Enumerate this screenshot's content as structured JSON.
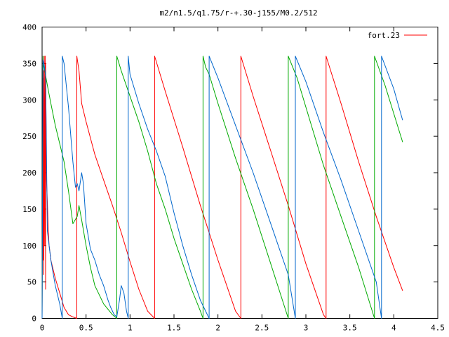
{
  "chart_data": {
    "type": "line",
    "title": "m2/n1.5/q1.75/r-+.30-j155/M0.2/512",
    "xlabel": "",
    "ylabel": "",
    "xlim": [
      0,
      4.5
    ],
    "ylim": [
      0,
      400
    ],
    "x_ticks": [
      "0",
      "0.5",
      "1",
      "1.5",
      "2",
      "2.5",
      "3",
      "3.5",
      "4",
      "4.5"
    ],
    "y_ticks": [
      "0",
      "50",
      "100",
      "150",
      "200",
      "250",
      "300",
      "350",
      "400"
    ],
    "grid": false,
    "legend": {
      "position": "top-right",
      "entries": [
        "fort.23"
      ]
    },
    "series": [
      {
        "name": "fort.23",
        "color": "#ff0000",
        "x": [
          0,
          0.01,
          0.01,
          0.02,
          0.02,
          0.025,
          0.03,
          0.035,
          0.04,
          0.04,
          0.05,
          0.06,
          0.07,
          0.08,
          0.09,
          0.1,
          0.15,
          0.2,
          0.25,
          0.3,
          0.35,
          0.395,
          0.395,
          0.42,
          0.45,
          0.5,
          0.6,
          0.7,
          0.8,
          0.9,
          1.0,
          1.1,
          1.2,
          1.28,
          1.28,
          1.4,
          1.6,
          1.8,
          2.0,
          2.2,
          2.26,
          2.26,
          2.4,
          2.6,
          2.8,
          3.0,
          3.2,
          3.23,
          3.23,
          3.4,
          3.6,
          3.8,
          4.0,
          4.1
        ],
        "y": [
          0,
          330,
          80,
          340,
          60,
          360,
          100,
          360,
          40,
          350,
          190,
          160,
          120,
          100,
          90,
          80,
          55,
          35,
          15,
          5,
          2,
          0,
          360,
          340,
          295,
          270,
          225,
          190,
          155,
          118,
          78,
          40,
          10,
          0,
          360,
          312,
          235,
          155,
          80,
          10,
          0,
          360,
          305,
          230,
          155,
          75,
          5,
          0,
          360,
          295,
          215,
          140,
          70,
          38
        ]
      },
      {
        "name": "",
        "color": "#00aa00",
        "x": [
          0,
          0.01,
          0.01,
          0.03,
          0.06,
          0.1,
          0.15,
          0.2,
          0.25,
          0.3,
          0.35,
          0.4,
          0.42,
          0.45,
          0.5,
          0.55,
          0.6,
          0.7,
          0.8,
          0.85,
          0.85,
          0.9,
          1.0,
          1.1,
          1.2,
          1.3,
          1.4,
          1.5,
          1.6,
          1.7,
          1.8,
          1.83,
          1.83,
          1.86,
          1.9,
          2.0,
          2.2,
          2.4,
          2.6,
          2.8,
          2.8,
          2.9,
          3.0,
          3.2,
          3.4,
          3.6,
          3.78,
          3.78,
          3.9,
          4.1
        ],
        "y": [
          0,
          360,
          350,
          340,
          320,
          295,
          265,
          240,
          215,
          175,
          130,
          140,
          155,
          135,
          100,
          70,
          45,
          20,
          5,
          0,
          360,
          340,
          305,
          270,
          230,
          185,
          150,
          110,
          75,
          40,
          10,
          0,
          360,
          345,
          335,
          295,
          220,
          150,
          75,
          0,
          360,
          330,
          290,
          210,
          140,
          70,
          0,
          360,
          320,
          242
        ]
      },
      {
        "name": "",
        "color": "#0066cc",
        "x": [
          0,
          0.01,
          0.02,
          0.04,
          0.06,
          0.1,
          0.15,
          0.2,
          0.23,
          0.23,
          0.25,
          0.3,
          0.35,
          0.38,
          0.4,
          0.42,
          0.45,
          0.47,
          0.5,
          0.55,
          0.6,
          0.65,
          0.7,
          0.75,
          0.78,
          0.8,
          0.82,
          0.85,
          0.88,
          0.9,
          0.93,
          0.96,
          0.98,
          0.98,
          1.0,
          1.1,
          1.2,
          1.3,
          1.4,
          1.5,
          1.6,
          1.7,
          1.8,
          1.9,
          1.9,
          2.0,
          2.2,
          2.4,
          2.6,
          2.8,
          2.88,
          2.88,
          3.0,
          3.2,
          3.4,
          3.6,
          3.8,
          3.86,
          3.86,
          4.0,
          4.1
        ],
        "y": [
          0,
          355,
          350,
          335,
          120,
          80,
          45,
          20,
          0,
          360,
          350,
          290,
          215,
          180,
          185,
          175,
          200,
          185,
          130,
          95,
          80,
          60,
          45,
          25,
          15,
          10,
          5,
          2,
          25,
          45,
          35,
          10,
          0,
          360,
          335,
          295,
          260,
          230,
          195,
          145,
          100,
          60,
          25,
          0,
          360,
          330,
          265,
          200,
          130,
          60,
          0,
          360,
          325,
          255,
          190,
          120,
          50,
          0,
          360,
          315,
          272
        ]
      }
    ]
  }
}
